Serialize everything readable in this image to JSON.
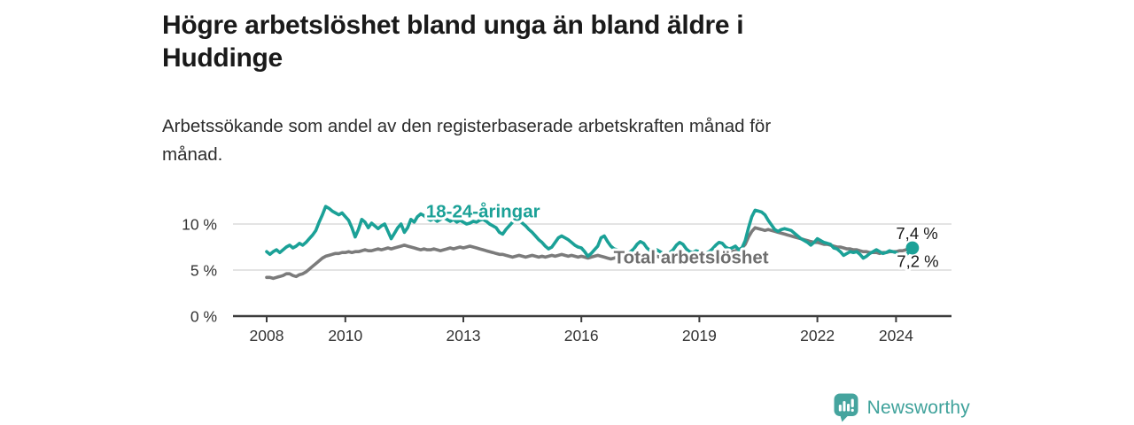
{
  "header": {
    "title_lines": [
      "Högre arbetslöshet bland unga än bland äldre i",
      "Huddinge"
    ],
    "subtitle_lines": [
      "Arbetssökande som andel av den registerbaserade arbetskraften månad för",
      "månad."
    ]
  },
  "chart_data": {
    "type": "line",
    "title": "Högre arbetslöshet bland unga än bland äldre i Huddinge",
    "subtitle": "Arbetssökande som andel av den registerbaserade arbetskraften månad för månad.",
    "grid": "horizontal",
    "grid_color": "#dbdbdb",
    "axis_color": "#3c3c3c",
    "tick_text_color": "#333333",
    "x_range": [
      2006.9,
      2025.4
    ],
    "ylim": [
      0,
      12.7
    ],
    "yticks": [
      {
        "value": 0,
        "label": "0 %"
      },
      {
        "value": 5,
        "label": "5 %"
      },
      {
        "value": 10,
        "label": "10 %"
      }
    ],
    "xticks": [
      {
        "value": 2008,
        "label": "2008"
      },
      {
        "value": 2010,
        "label": "2010"
      },
      {
        "value": 2013,
        "label": "2013"
      },
      {
        "value": 2016,
        "label": "2016"
      },
      {
        "value": 2019,
        "label": "2019"
      },
      {
        "value": 2022,
        "label": "2022"
      },
      {
        "value": 2024,
        "label": "2024"
      }
    ],
    "x_unit": "monthly from January 2008 to June 2024",
    "series": [
      {
        "name": "18-24-åringar",
        "color": "#1ba197",
        "x_start": 2008.0,
        "x_step": 0.0833333,
        "end_dot": true,
        "end_value_label": "7,4 %",
        "values": [
          7.0,
          6.7,
          7.0,
          7.2,
          6.9,
          7.2,
          7.5,
          7.7,
          7.4,
          7.6,
          7.9,
          7.7,
          8.0,
          8.4,
          8.8,
          9.3,
          10.2,
          11.0,
          11.9,
          11.7,
          11.4,
          11.2,
          11.0,
          11.2,
          10.8,
          10.4,
          9.6,
          8.6,
          9.4,
          10.5,
          10.2,
          9.6,
          10.1,
          9.8,
          9.5,
          9.8,
          10.0,
          9.2,
          8.4,
          9.0,
          9.6,
          10.0,
          9.1,
          9.6,
          10.5,
          10.2,
          10.8,
          11.1,
          10.9,
          10.6,
          10.4,
          10.6,
          10.3,
          10.5,
          10.7,
          10.5,
          10.3,
          10.5,
          10.2,
          10.4,
          10.2,
          10.0,
          10.1,
          10.3,
          10.2,
          10.4,
          10.5,
          10.3,
          10.0,
          9.8,
          9.6,
          9.1,
          8.9,
          9.4,
          9.8,
          10.2,
          10.6,
          10.4,
          10.1,
          9.8,
          9.4,
          9.1,
          8.7,
          8.3,
          8.0,
          7.6,
          7.3,
          7.5,
          8.0,
          8.5,
          8.7,
          8.5,
          8.3,
          8.0,
          7.7,
          7.5,
          7.4,
          7.0,
          6.5,
          6.8,
          7.2,
          7.6,
          8.5,
          8.7,
          8.1,
          7.6,
          7.3,
          7.2,
          7.0,
          6.9,
          6.8,
          7.0,
          7.3,
          7.8,
          8.1,
          7.9,
          7.4,
          7.1,
          7.0,
          7.2,
          7.0,
          6.8,
          6.7,
          6.9,
          7.2,
          7.7,
          8.0,
          7.8,
          7.3,
          7.0,
          6.9,
          7.1,
          7.0,
          6.9,
          6.8,
          7.0,
          7.3,
          7.7,
          8.0,
          7.9,
          7.5,
          7.3,
          7.4,
          7.6,
          7.2,
          7.4,
          8.2,
          9.6,
          10.8,
          11.5,
          11.4,
          11.3,
          11.0,
          10.4,
          9.9,
          9.4,
          9.2,
          9.4,
          9.5,
          9.4,
          9.3,
          9.0,
          8.7,
          8.4,
          8.2,
          8.0,
          7.7,
          8.0,
          8.4,
          8.2,
          8.0,
          7.9,
          7.8,
          7.4,
          7.3,
          7.0,
          6.6,
          6.8,
          7.0,
          6.9,
          7.0,
          6.7,
          6.3,
          6.5,
          6.8,
          7.0,
          7.2,
          7.0,
          6.8,
          6.9,
          7.1,
          7.0,
          6.9,
          6.6,
          6.4,
          6.6,
          7.0,
          7.4
        ]
      },
      {
        "name": "Total arbetslöshet",
        "color": "#7b7b7b",
        "x_start": 2008.0,
        "x_step": 0.0833333,
        "end_dot": false,
        "end_value_label": "7,2 %",
        "values": [
          4.2,
          4.2,
          4.1,
          4.2,
          4.3,
          4.4,
          4.6,
          4.6,
          4.4,
          4.3,
          4.5,
          4.6,
          4.8,
          5.1,
          5.4,
          5.7,
          6.0,
          6.3,
          6.5,
          6.6,
          6.7,
          6.8,
          6.8,
          6.9,
          6.9,
          7.0,
          6.9,
          7.0,
          7.0,
          7.1,
          7.2,
          7.1,
          7.1,
          7.2,
          7.3,
          7.2,
          7.3,
          7.4,
          7.3,
          7.4,
          7.5,
          7.6,
          7.7,
          7.6,
          7.5,
          7.4,
          7.3,
          7.2,
          7.3,
          7.2,
          7.2,
          7.3,
          7.2,
          7.1,
          7.2,
          7.3,
          7.4,
          7.3,
          7.4,
          7.5,
          7.4,
          7.5,
          7.6,
          7.5,
          7.4,
          7.3,
          7.2,
          7.1,
          7.0,
          6.9,
          6.8,
          6.7,
          6.7,
          6.6,
          6.5,
          6.4,
          6.5,
          6.6,
          6.5,
          6.4,
          6.5,
          6.6,
          6.5,
          6.4,
          6.5,
          6.4,
          6.5,
          6.6,
          6.5,
          6.6,
          6.7,
          6.6,
          6.5,
          6.6,
          6.5,
          6.4,
          6.5,
          6.4,
          6.3,
          6.4,
          6.5,
          6.6,
          6.5,
          6.4,
          6.3,
          6.2,
          6.3,
          6.4,
          6.4,
          6.3,
          6.2,
          6.3,
          6.4,
          6.5,
          6.4,
          6.3,
          6.2,
          6.3,
          6.4,
          6.5,
          6.4,
          6.3,
          6.2,
          6.3,
          6.4,
          6.5,
          6.4,
          6.3,
          6.3,
          6.4,
          6.5,
          6.5,
          6.4,
          6.5,
          6.6,
          6.5,
          6.6,
          6.7,
          6.8,
          6.7,
          6.8,
          6.9,
          7.0,
          7.1,
          7.2,
          7.4,
          7.8,
          8.6,
          9.2,
          9.6,
          9.5,
          9.4,
          9.3,
          9.4,
          9.3,
          9.2,
          9.1,
          9.0,
          8.9,
          8.8,
          8.7,
          8.6,
          8.5,
          8.4,
          8.3,
          8.2,
          8.1,
          8.0,
          8.0,
          7.9,
          7.8,
          7.8,
          7.7,
          7.6,
          7.5,
          7.5,
          7.4,
          7.3,
          7.3,
          7.2,
          7.2,
          7.1,
          7.0,
          7.0,
          6.9,
          6.9,
          6.9,
          6.8,
          6.9,
          6.9,
          7.0,
          7.0,
          7.0,
          7.1,
          7.1,
          7.2,
          7.2,
          7.2
        ]
      }
    ],
    "labels": [
      {
        "text": "18-24-åringar",
        "x": 2013.5,
        "y": 10.7,
        "color": "#1ba197",
        "bold": true,
        "size": 20.5,
        "anchor": "middle"
      },
      {
        "text": "Total arbetslöshet",
        "x": 2016.82,
        "y": 5.7,
        "color": "#6e6e6e",
        "bold": true,
        "size": 20.5,
        "anchor": "start"
      },
      {
        "text": "7,4 %",
        "x": 2024.0,
        "y": 8.35,
        "color": "#1a1a1a",
        "bold": false,
        "size": 18.5,
        "anchor": "start"
      },
      {
        "text": "7,2 %",
        "x": 2024.02,
        "y": 5.35,
        "color": "#1a1a1a",
        "bold": false,
        "size": 18.5,
        "anchor": "start"
      }
    ],
    "legend_position": "inline-labels"
  },
  "footer": {
    "brand": "Newsworthy",
    "brand_color": "#3fa29b",
    "icon_color": "#45a49e",
    "icon": "bar-chart-speech-bubble-icon"
  }
}
